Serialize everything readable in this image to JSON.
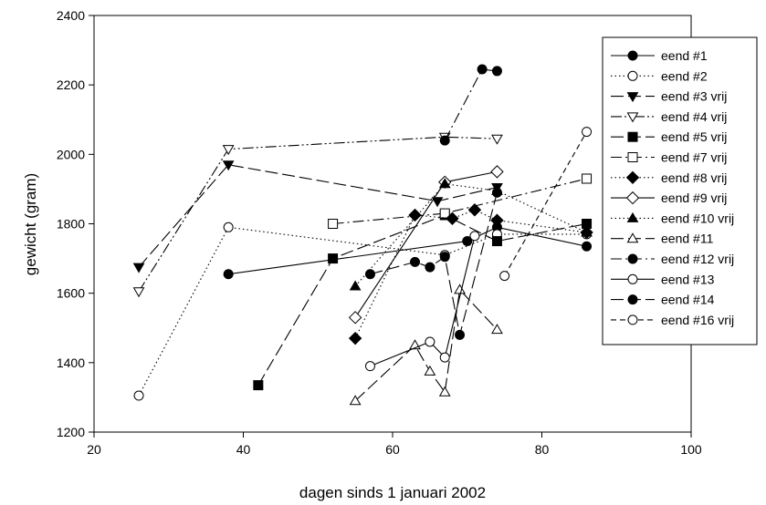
{
  "chart_data": {
    "type": "scatter",
    "xlabel": "dagen sinds 1 januari 2002",
    "ylabel": "gewicht (gram)",
    "xlim": [
      20,
      100
    ],
    "ylim": [
      1200,
      2400
    ],
    "xticks": [
      20,
      40,
      60,
      80,
      100
    ],
    "yticks": [
      1200,
      1400,
      1600,
      1800,
      2000,
      2200,
      2400
    ],
    "grid": false,
    "legend_position": "right",
    "series": [
      {
        "name": "eend #1",
        "marker": "circle",
        "filled": true,
        "dash": "solid",
        "x": [
          38,
          70,
          74,
          86
        ],
        "y": [
          1655,
          1750,
          1790,
          1735
        ]
      },
      {
        "name": "eend #2",
        "marker": "circle",
        "filled": false,
        "dash": "dot",
        "x": [
          26,
          38,
          67,
          74,
          86
        ],
        "y": [
          1305,
          1790,
          1710,
          1770,
          1770
        ]
      },
      {
        "name": "eend #3 vrij",
        "marker": "triangle-down",
        "filled": true,
        "dash": "longdash",
        "x": [
          26,
          38,
          66,
          74
        ],
        "y": [
          1675,
          1970,
          1865,
          1905
        ]
      },
      {
        "name": "eend #4 vrij",
        "marker": "triangle-down",
        "filled": false,
        "dash": "dashdotdot",
        "x": [
          26,
          38,
          67,
          74
        ],
        "y": [
          1605,
          2015,
          2050,
          2045
        ]
      },
      {
        "name": "eend #5 vrij",
        "marker": "square",
        "filled": true,
        "dash": "longdash",
        "x": [
          42,
          52,
          67,
          74,
          86
        ],
        "y": [
          1335,
          1700,
          1825,
          1750,
          1800
        ]
      },
      {
        "name": "eend #7 vrij",
        "marker": "square",
        "filled": false,
        "dash": "dashdot",
        "x": [
          52,
          67,
          86
        ],
        "y": [
          1800,
          1830,
          1930
        ]
      },
      {
        "name": "eend #8 vrij",
        "marker": "diamond",
        "filled": true,
        "dash": "dot",
        "x": [
          55,
          63,
          68,
          71,
          74,
          86
        ],
        "y": [
          1470,
          1825,
          1815,
          1840,
          1810,
          1775
        ]
      },
      {
        "name": "eend #9 vrij",
        "marker": "diamond",
        "filled": false,
        "dash": "solid",
        "x": [
          55,
          67,
          74
        ],
        "y": [
          1530,
          1920,
          1950
        ]
      },
      {
        "name": "eend #10 vrij",
        "marker": "triangle-up",
        "filled": true,
        "dash": "dot",
        "x": [
          55,
          67,
          74,
          86
        ],
        "y": [
          1620,
          1915,
          1895,
          1775
        ]
      },
      {
        "name": "eend #11",
        "marker": "triangle-up",
        "filled": false,
        "dash": "longdash",
        "x": [
          55,
          63,
          65,
          67,
          69,
          74
        ],
        "y": [
          1290,
          1450,
          1375,
          1315,
          1610,
          1495
        ]
      },
      {
        "name": "eend #12 vrij",
        "marker": "hexagon",
        "filled": true,
        "dash": "dashdot",
        "x": [
          67,
          72,
          74
        ],
        "y": [
          2040,
          2245,
          2240
        ]
      },
      {
        "name": "eend #13",
        "marker": "hexagon",
        "filled": false,
        "dash": "solid",
        "x": [
          57,
          65,
          67,
          71
        ],
        "y": [
          1390,
          1460,
          1415,
          1765
        ]
      },
      {
        "name": "eend #14",
        "marker": "hexagon",
        "filled": true,
        "dash": "longdash",
        "x": [
          57,
          63,
          65,
          67,
          69,
          74
        ],
        "y": [
          1655,
          1690,
          1675,
          1705,
          1480,
          1890
        ]
      },
      {
        "name": "eend #16 vrij",
        "marker": "hexagon",
        "filled": false,
        "dash": "dashed",
        "x": [
          75,
          86
        ],
        "y": [
          1650,
          2065
        ]
      }
    ]
  }
}
